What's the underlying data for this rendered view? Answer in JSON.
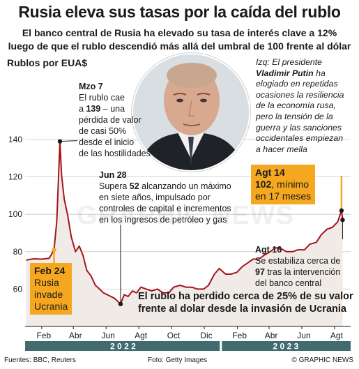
{
  "title": "Rusia eleva sus tasas por la caída del rublo",
  "subtitle_1": "El banco central de Rusia ha elevado su tasa de interés clave a 12%",
  "subtitle_2": "luego de que el rublo descendió más allá del umbral de 100 frente al dólar",
  "chart_data": {
    "type": "area",
    "ylabel": "Rublos por EUA$",
    "ylim": [
      40,
      142
    ],
    "yticks": [
      60,
      80,
      100,
      120,
      140
    ],
    "x_tick_labels": [
      "Feb",
      "Abr",
      "Jun",
      "Agt",
      "Oct",
      "Dic",
      "Feb",
      "Abr",
      "Jun",
      "Agt"
    ],
    "years": [
      "2 0 2 2",
      "2 0 2 3"
    ],
    "grid": true,
    "colors": {
      "line": "#a3141d",
      "fill": "#f0ebe6",
      "highlight": "#f5a81f",
      "timeline": "#416b6e"
    },
    "series": [
      {
        "x": [
          "2022-01-03",
          "2022-01-17",
          "2022-02-01",
          "2022-02-15",
          "2022-02-24",
          "2022-03-01",
          "2022-03-03",
          "2022-03-07",
          "2022-03-10",
          "2022-03-15",
          "2022-03-21",
          "2022-03-28",
          "2022-04-05",
          "2022-04-12",
          "2022-04-19",
          "2022-04-26",
          "2022-05-04",
          "2022-05-12",
          "2022-05-20",
          "2022-05-27",
          "2022-06-03",
          "2022-06-10",
          "2022-06-17",
          "2022-06-28",
          "2022-07-05",
          "2022-07-12",
          "2022-07-20",
          "2022-07-28",
          "2022-08-05",
          "2022-08-15",
          "2022-08-25",
          "2022-09-05",
          "2022-09-15",
          "2022-09-26",
          "2022-10-05",
          "2022-10-17",
          "2022-10-28",
          "2022-11-08",
          "2022-11-18",
          "2022-11-30",
          "2022-12-09",
          "2022-12-20",
          "2022-12-29",
          "2023-01-10",
          "2023-01-20",
          "2023-01-31",
          "2023-02-10",
          "2023-02-20",
          "2023-03-02",
          "2023-03-13",
          "2023-03-22",
          "2023-04-03",
          "2023-04-12",
          "2023-04-21",
          "2023-05-03",
          "2023-05-15",
          "2023-05-25",
          "2023-06-06",
          "2023-06-16",
          "2023-06-28",
          "2023-07-07",
          "2023-07-18",
          "2023-07-28",
          "2023-08-07",
          "2023-08-14",
          "2023-08-16"
        ],
        "y": [
          75.5,
          76.2,
          76.0,
          76.5,
          81.0,
          96.0,
          110,
          139,
          121,
          108,
          100,
          88,
          80,
          83,
          78,
          70,
          67,
          62,
          60,
          58,
          57,
          56,
          55,
          52,
          57,
          56,
          59,
          58,
          61,
          60,
          59,
          60,
          58,
          58,
          61,
          62,
          61,
          61,
          60,
          60,
          62,
          68,
          71,
          68,
          68,
          69,
          72,
          74,
          76,
          76,
          78,
          80,
          82,
          82,
          80,
          80,
          81,
          81,
          84,
          85,
          89,
          92,
          93,
          96,
          102,
          97
        ]
      }
    ]
  },
  "annotations": {
    "mar7": {
      "date": "Mzo 7",
      "l1_pre": "El rublo cae",
      "l2_pre": "a ",
      "l2_val": "139",
      "l2_post": " – una",
      "l3": "pérdida de valor",
      "l4": "de casi 50%",
      "l5": "desde el inicio",
      "l6": "de las hostilidades"
    },
    "jun28": {
      "date": "Jun 28",
      "l1_pre": "Supera ",
      "l1_val": "52",
      "l1_post": " alcanzando un máximo",
      "l2": "en siete años, impulsado por",
      "l3": "controles de capital e incrementos",
      "l4": "en los ingresos de petróleo y gas"
    },
    "feb24": {
      "date": "Feb 24",
      "l1": "Rusia",
      "l2": "invade",
      "l3": "Ucrania"
    },
    "aug14": {
      "date": "Agt 14",
      "l1_val": "102",
      "l1_post": ", mínimo",
      "l2": "en 17 meses"
    },
    "aug16": {
      "date": "Agt 16",
      "l1": "Se estabiliza cerca de",
      "l2_val": "97",
      "l2_post": " tras la intervención",
      "l3": "del banco central"
    }
  },
  "putin_quote": {
    "l1": "Izq: El presidente",
    "l2": "Vladimir Putin",
    "l2_post": " ha",
    "l3": "elogiado en repetidas",
    "l4": "ocasiones la resiliencia",
    "l5": "de la economía rusa,",
    "l6": "pero la tensión de la",
    "l7": "guerra y las sanciones",
    "l8": "occidentales  empiezan",
    "l9": "a hacer mella"
  },
  "headline_1": "El rublo ha perdido cerca de 25% de su valor",
  "headline_2": "frente al dolar desde la invasión de Ucrania",
  "watermark": "GRAPHIC NEWS",
  "footer": {
    "sources": "Fuentes: BBC, Reuters",
    "photo": "Foto: Getty Images",
    "credit": "© GRAPHIC NEWS"
  }
}
